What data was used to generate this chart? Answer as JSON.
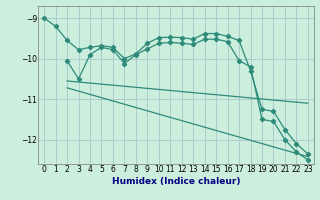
{
  "xlabel": "Humidex (Indice chaleur)",
  "bg_color": "#cceedd",
  "grid_color": "#aacccc",
  "line_color": "#2e8b7a",
  "xlim": [
    -0.5,
    23.5
  ],
  "ylim": [
    -12.6,
    -8.7
  ],
  "yticks": [
    -9,
    -10,
    -11,
    -12
  ],
  "xticks": [
    0,
    1,
    2,
    3,
    4,
    5,
    6,
    7,
    8,
    9,
    10,
    11,
    12,
    13,
    14,
    15,
    16,
    17,
    18,
    19,
    20,
    21,
    22,
    23
  ],
  "series1_x": [
    0,
    1,
    2,
    3,
    4,
    5,
    6,
    7,
    8,
    9,
    10,
    11,
    12,
    13,
    14,
    15,
    16,
    17,
    18,
    19,
    20,
    21,
    22,
    23
  ],
  "series1_y": [
    -9.0,
    -9.2,
    -9.55,
    -9.78,
    -9.72,
    -9.68,
    -9.72,
    -10.0,
    -9.88,
    -9.62,
    -9.48,
    -9.47,
    -9.48,
    -9.52,
    -9.38,
    -9.38,
    -9.45,
    -9.55,
    -10.3,
    -11.25,
    -11.3,
    -11.75,
    -12.1,
    -12.35
  ],
  "series2_x": [
    2,
    3,
    4,
    5,
    6,
    7,
    8,
    9,
    10,
    11,
    12,
    13,
    14,
    15,
    16,
    17,
    18,
    19,
    20,
    21,
    22,
    23
  ],
  "series2_y": [
    -10.05,
    -10.5,
    -9.9,
    -9.72,
    -9.78,
    -10.12,
    -9.9,
    -9.76,
    -9.62,
    -9.6,
    -9.62,
    -9.65,
    -9.52,
    -9.52,
    -9.58,
    -10.05,
    -10.2,
    -11.5,
    -11.55,
    -12.0,
    -12.3,
    -12.5
  ],
  "line3_x": [
    2,
    23
  ],
  "line3_y": [
    -10.55,
    -11.1
  ],
  "line4_x": [
    2,
    23
  ],
  "line4_y": [
    -10.72,
    -12.42
  ]
}
